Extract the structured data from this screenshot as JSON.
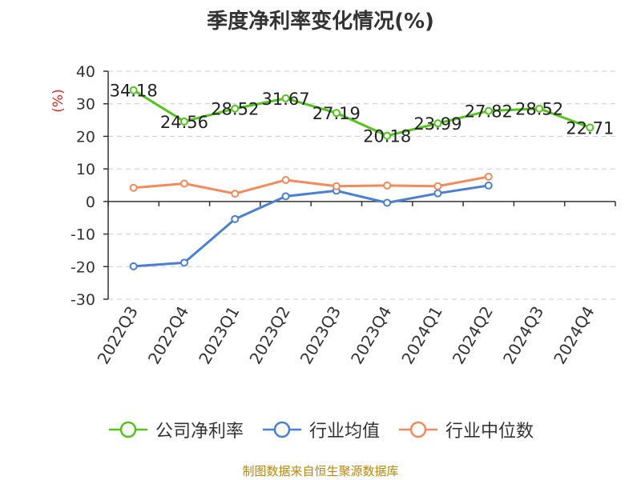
{
  "chart_data": {
    "type": "line",
    "title": "季度净利率变化情况(%)",
    "ylabel": "(%)",
    "xlabel": "",
    "ylim": [
      -30,
      40
    ],
    "yticks": [
      40,
      30,
      20,
      10,
      0,
      -10,
      -20,
      -30
    ],
    "categories": [
      "2022Q3",
      "2022Q4",
      "2023Q1",
      "2023Q2",
      "2023Q3",
      "2023Q4",
      "2024Q1",
      "2024Q2",
      "2024Q3",
      "2024Q4"
    ],
    "grid": "horizontal dashed",
    "legend_position": "bottom",
    "series": [
      {
        "name": "公司净利率",
        "color": "#52c41a",
        "values": [
          34.18,
          24.56,
          28.52,
          31.67,
          27.19,
          20.18,
          23.99,
          27.82,
          28.52,
          22.71
        ],
        "labels": [
          "34.18",
          "24.56",
          "28.52",
          "31.67",
          "27.19",
          "20.18",
          "23.99",
          "27.82",
          "28.52",
          "22.71"
        ]
      },
      {
        "name": "行业均值",
        "color": "#4a7fd6",
        "values": [
          -19.9,
          -18.8,
          -5.4,
          1.6,
          3.3,
          -0.4,
          2.5,
          4.9,
          null,
          null
        ]
      },
      {
        "name": "行业中位数",
        "color": "#f5895a",
        "values": [
          4.2,
          5.5,
          2.4,
          6.6,
          4.7,
          4.9,
          4.7,
          7.6,
          null,
          null
        ]
      }
    ]
  },
  "source_note": "制图数据来自恒生聚源数据库"
}
